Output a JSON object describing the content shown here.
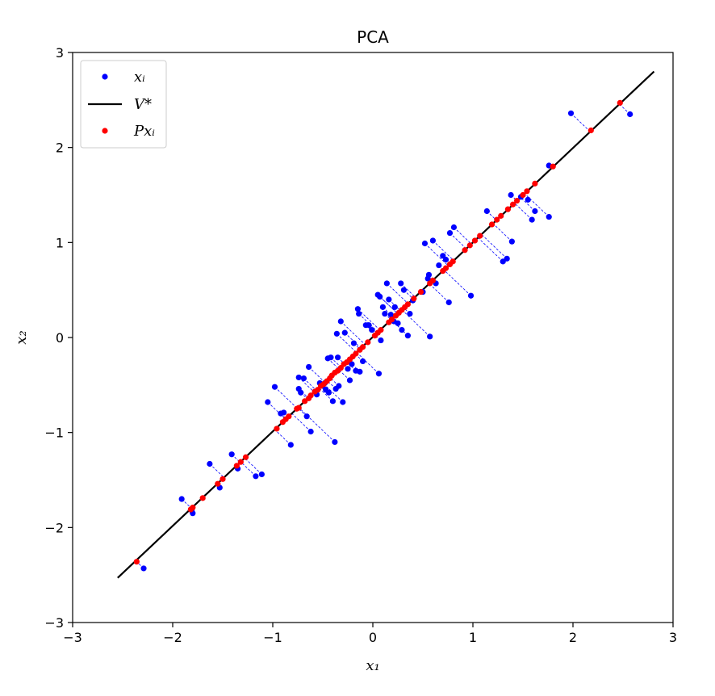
{
  "chart_data": {
    "type": "scatter",
    "title": "PCA",
    "xlabel": "x₁",
    "ylabel": "x₂",
    "xlim": [
      -3,
      3
    ],
    "ylim": [
      -3,
      3
    ],
    "xticks": [
      "−3",
      "−2",
      "−1",
      "0",
      "1",
      "2",
      "3"
    ],
    "yticks": [
      "−3",
      "−2",
      "−1",
      "0",
      "1",
      "2",
      "3"
    ],
    "grid": false,
    "legend_position": "top-left",
    "legend": [
      {
        "label": "xᵢ",
        "marker": "dot",
        "color": "#0000ff"
      },
      {
        "label": "V*",
        "marker": "line",
        "color": "#000000"
      },
      {
        "label": "Pxᵢ",
        "marker": "dot",
        "color": "#ff0000"
      }
    ],
    "principal_axis": {
      "start": [
        -2.55,
        -2.53
      ],
      "end": [
        2.81,
        2.8
      ],
      "color": "#000000"
    },
    "projection_line_color": "#0000ff",
    "series": [
      {
        "name": "xᵢ",
        "color": "#0000ff",
        "points": [
          [
            -2.29,
            -2.43
          ],
          [
            -1.8,
            -1.85
          ],
          [
            -1.91,
            -1.7
          ],
          [
            -1.81,
            -1.82
          ],
          [
            -1.63,
            -1.33
          ],
          [
            -1.53,
            -1.58
          ],
          [
            -1.41,
            -1.23
          ],
          [
            -1.35,
            -1.38
          ],
          [
            -1.17,
            -1.46
          ],
          [
            -1.11,
            -1.44
          ],
          [
            -1.05,
            -0.68
          ],
          [
            -0.98,
            -0.52
          ],
          [
            -0.92,
            -0.8
          ],
          [
            -0.89,
            -0.79
          ],
          [
            -0.82,
            -1.13
          ],
          [
            -0.74,
            -0.42
          ],
          [
            -0.74,
            -0.54
          ],
          [
            -0.72,
            -0.58
          ],
          [
            -0.69,
            -0.43
          ],
          [
            -0.66,
            -0.83
          ],
          [
            -0.64,
            -0.31
          ],
          [
            -0.62,
            -0.99
          ],
          [
            -0.56,
            -0.6
          ],
          [
            -0.53,
            -0.48
          ],
          [
            -0.5,
            -0.51
          ],
          [
            -0.47,
            -0.55
          ],
          [
            -0.45,
            -0.22
          ],
          [
            -0.44,
            -0.58
          ],
          [
            -0.42,
            -0.21
          ],
          [
            -0.4,
            -0.67
          ],
          [
            -0.38,
            -1.1
          ],
          [
            -0.37,
            -0.54
          ],
          [
            -0.36,
            0.04
          ],
          [
            -0.35,
            -0.21
          ],
          [
            -0.34,
            -0.51
          ],
          [
            -0.32,
            0.17
          ],
          [
            -0.3,
            -0.68
          ],
          [
            -0.28,
            0.05
          ],
          [
            -0.25,
            -0.33
          ],
          [
            -0.23,
            -0.45
          ],
          [
            -0.21,
            -0.28
          ],
          [
            -0.17,
            -0.35
          ],
          [
            -0.15,
            0.3
          ],
          [
            -0.14,
            0.25
          ],
          [
            -0.13,
            -0.36
          ],
          [
            -0.1,
            -0.25
          ],
          [
            -0.07,
            0.13
          ],
          [
            -0.04,
            0.13
          ],
          [
            -0.01,
            0.08
          ],
          [
            0.05,
            0.45
          ],
          [
            0.06,
            -0.38
          ],
          [
            0.07,
            0.43
          ],
          [
            0.08,
            -0.03
          ],
          [
            0.1,
            0.32
          ],
          [
            0.12,
            0.25
          ],
          [
            0.14,
            0.57
          ],
          [
            0.16,
            0.4
          ],
          [
            0.18,
            0.24
          ],
          [
            0.22,
            0.32
          ],
          [
            0.25,
            0.15
          ],
          [
            0.28,
            0.57
          ],
          [
            0.29,
            0.08
          ],
          [
            0.31,
            0.5
          ],
          [
            0.35,
            0.02
          ],
          [
            0.37,
            0.25
          ],
          [
            0.4,
            0.39
          ],
          [
            0.5,
            0.48
          ],
          [
            0.52,
            0.99
          ],
          [
            0.56,
            0.66
          ],
          [
            0.57,
            0.01
          ],
          [
            0.6,
            1.02
          ],
          [
            0.63,
            0.57
          ],
          [
            0.66,
            0.76
          ],
          [
            0.7,
            0.86
          ],
          [
            0.73,
            0.82
          ],
          [
            0.76,
            0.37
          ],
          [
            0.77,
            1.1
          ],
          [
            0.81,
            1.16
          ],
          [
            0.98,
            0.44
          ],
          [
            1.14,
            1.33
          ],
          [
            1.3,
            0.8
          ],
          [
            1.34,
            0.83
          ],
          [
            1.38,
            1.5
          ],
          [
            1.39,
            1.01
          ],
          [
            1.48,
            1.48
          ],
          [
            1.55,
            1.45
          ],
          [
            1.59,
            1.24
          ],
          [
            1.62,
            1.33
          ],
          [
            1.76,
            1.81
          ],
          [
            1.76,
            1.27
          ],
          [
            1.98,
            2.36
          ],
          [
            2.57,
            2.35
          ],
          [
            0.55,
            0.62
          ],
          [
            -0.48,
            -0.48
          ],
          [
            0.21,
            0.17
          ],
          [
            -0.19,
            -0.06
          ]
        ]
      },
      {
        "name": "Pxᵢ",
        "color": "#ff0000",
        "points": [
          [
            -2.36,
            -2.36
          ],
          [
            -1.82,
            -1.81
          ],
          [
            -1.8,
            -1.79
          ],
          [
            -1.7,
            -1.69
          ],
          [
            -1.5,
            -1.49
          ],
          [
            -1.55,
            -1.54
          ],
          [
            -1.32,
            -1.31
          ],
          [
            -1.36,
            -1.35
          ],
          [
            -1.27,
            -1.26
          ],
          [
            -0.96,
            -0.96
          ],
          [
            -0.9,
            -0.89
          ],
          [
            -0.87,
            -0.86
          ],
          [
            -0.84,
            -0.83
          ],
          [
            -0.76,
            -0.75
          ],
          [
            -0.74,
            -0.74
          ],
          [
            -0.68,
            -0.67
          ],
          [
            -0.64,
            -0.64
          ],
          [
            -0.62,
            -0.61
          ],
          [
            -0.58,
            -0.57
          ],
          [
            -0.55,
            -0.55
          ],
          [
            -0.52,
            -0.51
          ],
          [
            -0.49,
            -0.49
          ],
          [
            -0.46,
            -0.46
          ],
          [
            -0.43,
            -0.43
          ],
          [
            -0.41,
            -0.4
          ],
          [
            -0.38,
            -0.37
          ],
          [
            -0.35,
            -0.35
          ],
          [
            -0.32,
            -0.32
          ],
          [
            -0.29,
            -0.28
          ],
          [
            -0.26,
            -0.26
          ],
          [
            -0.23,
            -0.23
          ],
          [
            -0.2,
            -0.2
          ],
          [
            -0.17,
            -0.17
          ],
          [
            -0.13,
            -0.13
          ],
          [
            -0.1,
            -0.1
          ],
          [
            -0.05,
            -0.05
          ],
          [
            0.02,
            0.02
          ],
          [
            0.05,
            0.05
          ],
          [
            0.08,
            0.08
          ],
          [
            0.16,
            0.16
          ],
          [
            0.19,
            0.19
          ],
          [
            0.23,
            0.23
          ],
          [
            0.26,
            0.26
          ],
          [
            0.29,
            0.29
          ],
          [
            0.32,
            0.32
          ],
          [
            0.35,
            0.35
          ],
          [
            0.41,
            0.41
          ],
          [
            0.48,
            0.48
          ],
          [
            0.57,
            0.57
          ],
          [
            0.6,
            0.6
          ],
          [
            0.7,
            0.7
          ],
          [
            0.73,
            0.73
          ],
          [
            0.77,
            0.77
          ],
          [
            0.8,
            0.8
          ],
          [
            0.92,
            0.92
          ],
          [
            0.97,
            0.97
          ],
          [
            1.02,
            1.02
          ],
          [
            1.07,
            1.07
          ],
          [
            1.19,
            1.19
          ],
          [
            1.24,
            1.24
          ],
          [
            1.28,
            1.28
          ],
          [
            1.35,
            1.35
          ],
          [
            1.4,
            1.4
          ],
          [
            1.44,
            1.44
          ],
          [
            1.5,
            1.5
          ],
          [
            1.54,
            1.54
          ],
          [
            1.62,
            1.62
          ],
          [
            1.8,
            1.8
          ],
          [
            2.18,
            2.18
          ],
          [
            2.47,
            2.47
          ]
        ]
      }
    ]
  }
}
